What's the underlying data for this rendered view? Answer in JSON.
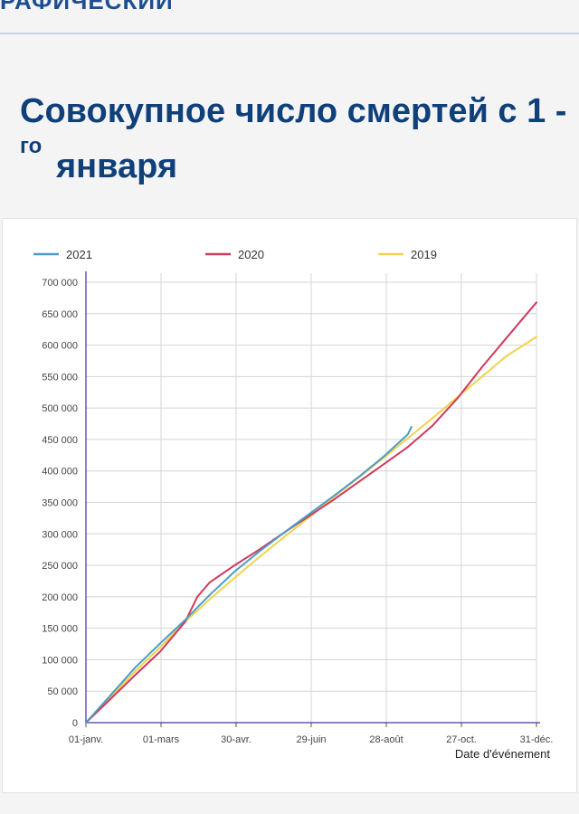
{
  "header": {
    "label": "РАФИЧЕСКИЙ"
  },
  "title": {
    "line1": "Совокупное число смертей с 1 -",
    "sup": "го",
    "line2": "января"
  },
  "chart_data": {
    "type": "line",
    "title": "Совокупное число смертей с 1 -го января",
    "xlabel": "Date d'événement",
    "ylabel": "",
    "x_ticks": [
      "01-janv.",
      "01-mars",
      "30-avr.",
      "29-juin",
      "28-août",
      "27-oct.",
      "31-déc."
    ],
    "y_ticks": [
      "0",
      "50 000",
      "100 000",
      "150 000",
      "200 000",
      "250 000",
      "300 000",
      "350 000",
      "400 000",
      "450 000",
      "500 000",
      "550 000",
      "600 000",
      "650 000",
      "700 000"
    ],
    "xlim": [
      0,
      364
    ],
    "ylim": [
      0,
      700000
    ],
    "grid": true,
    "legend_position": "top",
    "series": [
      {
        "name": "2021",
        "color": "#4b9cc9",
        "x": [
          0,
          20,
          40,
          60,
          80,
          100,
          120,
          140,
          160,
          180,
          200,
          220,
          240,
          260,
          263
        ],
        "y": [
          0,
          44000,
          88000,
          126000,
          163000,
          203000,
          240000,
          272000,
          302000,
          331000,
          360000,
          390000,
          422000,
          458000,
          470000
        ]
      },
      {
        "name": "2020",
        "color": "#cf3a5c",
        "x": [
          0,
          20,
          40,
          60,
          80,
          90,
          100,
          120,
          140,
          160,
          180,
          200,
          220,
          240,
          260,
          280,
          300,
          320,
          340,
          364
        ],
        "y": [
          0,
          38000,
          76000,
          113000,
          160000,
          200000,
          223000,
          250000,
          275000,
          302000,
          328000,
          354000,
          382000,
          410000,
          438000,
          472000,
          515000,
          565000,
          612000,
          668000
        ]
      },
      {
        "name": "2019",
        "color": "#f2d24b",
        "x": [
          0,
          20,
          40,
          60,
          80,
          100,
          120,
          140,
          160,
          180,
          200,
          220,
          240,
          260,
          280,
          300,
          320,
          340,
          364
        ],
        "y": [
          0,
          41000,
          82000,
          120000,
          160000,
          196000,
          230000,
          263000,
          295000,
          326000,
          358000,
          389000,
          420000,
          452000,
          484000,
          517000,
          550000,
          583000,
          613000
        ]
      }
    ]
  }
}
